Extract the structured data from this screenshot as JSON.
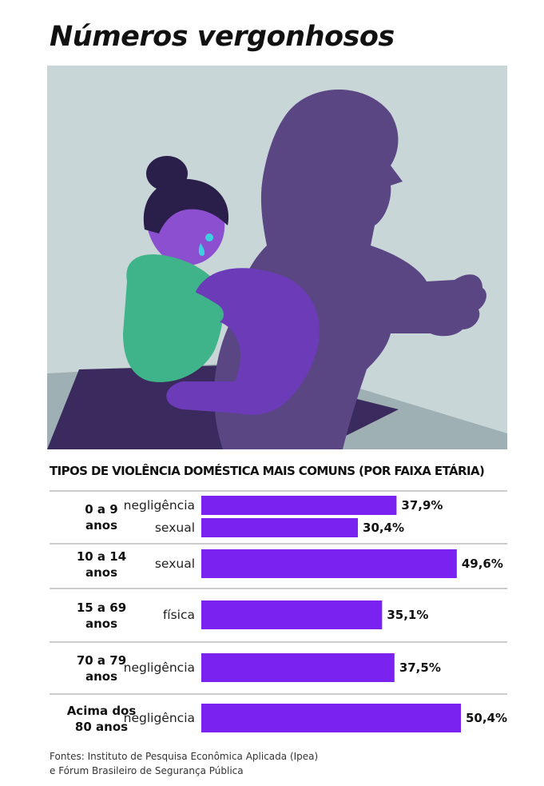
{
  "title": "Números vergonhosos",
  "illustration": {
    "icon": "domestic-violence-illustration",
    "colors": {
      "background": "#C9D6D8",
      "shadow": "#5A4682",
      "floor_dark": "#3B2A5E",
      "floor_light": "#9FB0B4",
      "skin": "#8B4FD0",
      "hair": "#2A1F4A",
      "shirt": "#3FB48A",
      "pants": "#6B3BB8",
      "eyes": "#3DD0E0"
    }
  },
  "chart_data": {
    "type": "bar",
    "title": "TIPOS DE VIOLÊNCIA DOMÉSTICA MAIS COMUNS (POR FAIXA ETÁRIA)",
    "groups": [
      {
        "age": [
          "0 a 9",
          "anos"
        ],
        "bars": [
          {
            "type": "negligência",
            "value": 37.9,
            "label": "37,9%"
          },
          {
            "type": "sexual",
            "value": 30.4,
            "label": "30,4%"
          }
        ]
      },
      {
        "age": [
          "10 a 14",
          "anos"
        ],
        "bars": [
          {
            "type": "sexual",
            "value": 49.6,
            "label": "49,6%"
          }
        ]
      },
      {
        "age": [
          "15 a 69",
          "anos"
        ],
        "bars": [
          {
            "type": "física",
            "value": 35.1,
            "label": "35,1%"
          }
        ]
      },
      {
        "age": [
          "70 a 79",
          "anos"
        ],
        "bars": [
          {
            "type": "negligência",
            "value": 37.5,
            "label": "37,5%"
          }
        ]
      },
      {
        "age": [
          "Acima dos",
          "80 anos"
        ],
        "bars": [
          {
            "type": "negligência",
            "value": 50.4,
            "label": "50,4%"
          }
        ]
      }
    ],
    "xlim": [
      0,
      50.4
    ],
    "bar_color": "#7A22F0",
    "grid": false
  },
  "source": {
    "line1": "Fontes: Instituto de Pesquisa Econômica Aplicada (Ipea)",
    "line2": "e Fórum Brasileiro de Segurança Pública"
  }
}
